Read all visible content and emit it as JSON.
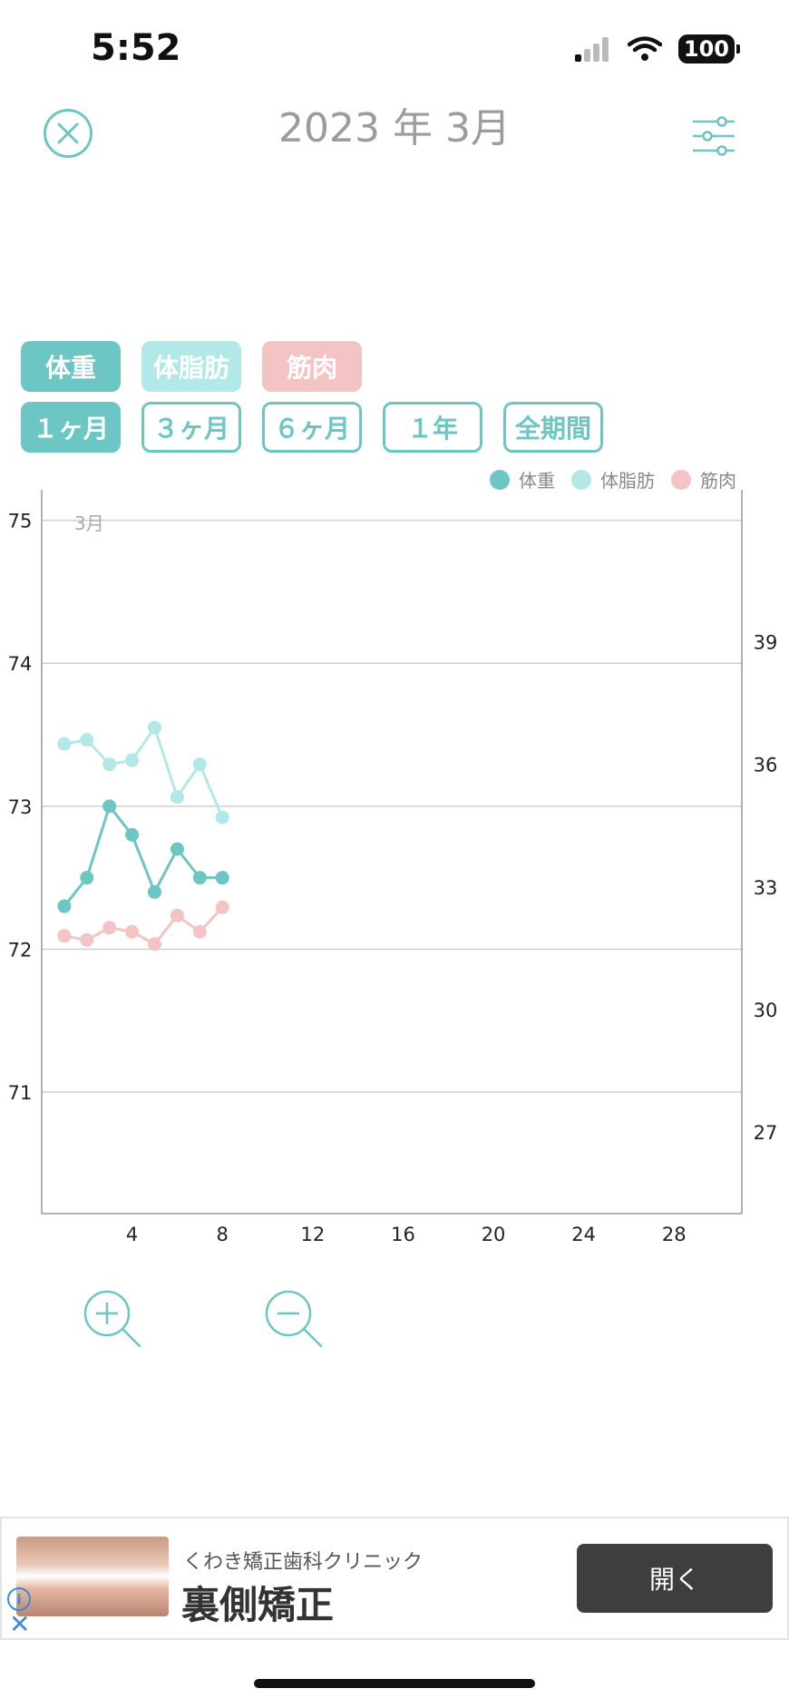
{
  "status_bar": {
    "time": "5:52",
    "battery": "100"
  },
  "header": {
    "title": "2023 年 3月",
    "close_icon": "close-circle-icon",
    "settings_icon": "sliders-icon"
  },
  "metric_chips": [
    {
      "label": "体重",
      "selected": true,
      "color": "#6cc6c4"
    },
    {
      "label": "体脂肪",
      "selected": true,
      "color": "#b3e8e8"
    },
    {
      "label": "筋肉",
      "selected": true,
      "color": "#f4c4c4"
    }
  ],
  "period_chips": [
    {
      "label": "１ヶ月",
      "selected": true
    },
    {
      "label": "３ヶ月",
      "selected": false
    },
    {
      "label": "６ヶ月",
      "selected": false
    },
    {
      "label": "１年",
      "selected": false
    },
    {
      "label": "全期間",
      "selected": false
    }
  ],
  "colors": {
    "accent": "#6cc6c4",
    "body_fat": "#b3e8e8",
    "muscle": "#f4c4c4",
    "grid": "#cfcfcf"
  },
  "chart_data": {
    "type": "line",
    "month_label": "3月",
    "xlim": [
      0,
      31
    ],
    "x_ticks": [
      4,
      8,
      12,
      16,
      20,
      24,
      28
    ],
    "y_left": {
      "ylim": [
        70.15,
        75.15
      ],
      "ticks": [
        75,
        74,
        73,
        72,
        71
      ]
    },
    "y_right": {
      "ylim": [
        25.0,
        42.5
      ],
      "ticks": [
        39,
        36,
        33,
        30,
        27
      ]
    },
    "legend": {
      "position": "top-right"
    },
    "grid": true,
    "series": [
      {
        "name": "体重",
        "axis": "left",
        "color": "#6cc6c4",
        "x": [
          1,
          2,
          3,
          4,
          5,
          6,
          7,
          8
        ],
        "values": [
          72.3,
          72.5,
          73.0,
          72.8,
          72.4,
          72.7,
          72.5,
          72.5
        ]
      },
      {
        "name": "体脂肪",
        "axis": "right",
        "color": "#b3e8e8",
        "x": [
          1,
          2,
          3,
          4,
          5,
          6,
          7,
          8
        ],
        "values": [
          36.5,
          36.6,
          36.0,
          36.1,
          36.9,
          35.2,
          36.0,
          34.7
        ]
      },
      {
        "name": "筋肉",
        "axis": "right",
        "color": "#f4c4c4",
        "x": [
          1,
          2,
          3,
          4,
          5,
          6,
          7,
          8
        ],
        "values": [
          31.8,
          31.7,
          32.0,
          31.9,
          31.6,
          32.3,
          31.9,
          32.5
        ]
      }
    ]
  },
  "zoom": {
    "zoom_in_icon": "zoom-in-icon",
    "zoom_out_icon": "zoom-out-icon"
  },
  "ad": {
    "subtitle": "くわき矯正歯科クリニック",
    "title": "裏側矯正",
    "open_label": "開く",
    "info_glyph": "i",
    "close_glyph": "✕"
  }
}
